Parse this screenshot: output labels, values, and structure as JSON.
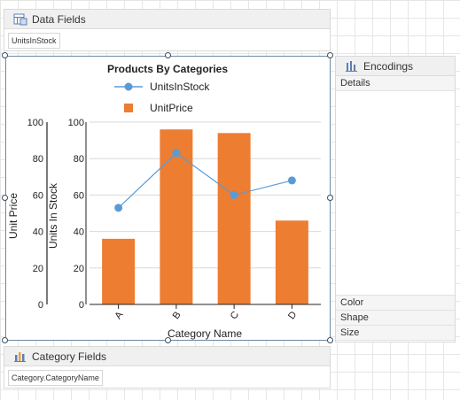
{
  "data_fields": {
    "title": "Data Fields",
    "chips": [
      "UnitsInStock"
    ]
  },
  "category_fields": {
    "title": "Category Fields",
    "chips": [
      "Category.CategoryName"
    ]
  },
  "encodings": {
    "title": "Encodings",
    "rows": [
      "Details",
      "Color",
      "Shape",
      "Size"
    ]
  },
  "colors": {
    "line": "#5b9bd5",
    "bar": "#ed7d31",
    "frame": "#6b8aa6"
  },
  "chart_data": {
    "type": "bar",
    "title": "Products By Categories",
    "categories": [
      "A",
      "B",
      "C",
      "D"
    ],
    "xlabel": "Category Name",
    "series": [
      {
        "name": "UnitsInStock",
        "kind": "line",
        "axis": "left-inner",
        "values": [
          53,
          83,
          60,
          68
        ]
      },
      {
        "name": "UnitPrice",
        "kind": "bar",
        "axis": "left-outer",
        "values": [
          36,
          96,
          94,
          46
        ]
      }
    ],
    "axes": [
      {
        "label": "Unit Price",
        "ylim": [
          0,
          100
        ],
        "ticks": [
          0,
          20,
          40,
          60,
          80,
          100
        ]
      },
      {
        "label": "Units In Stock",
        "ylim": [
          0,
          100
        ],
        "ticks": [
          0,
          20,
          40,
          60,
          80,
          100
        ]
      }
    ],
    "grid": true,
    "legend": "top"
  }
}
